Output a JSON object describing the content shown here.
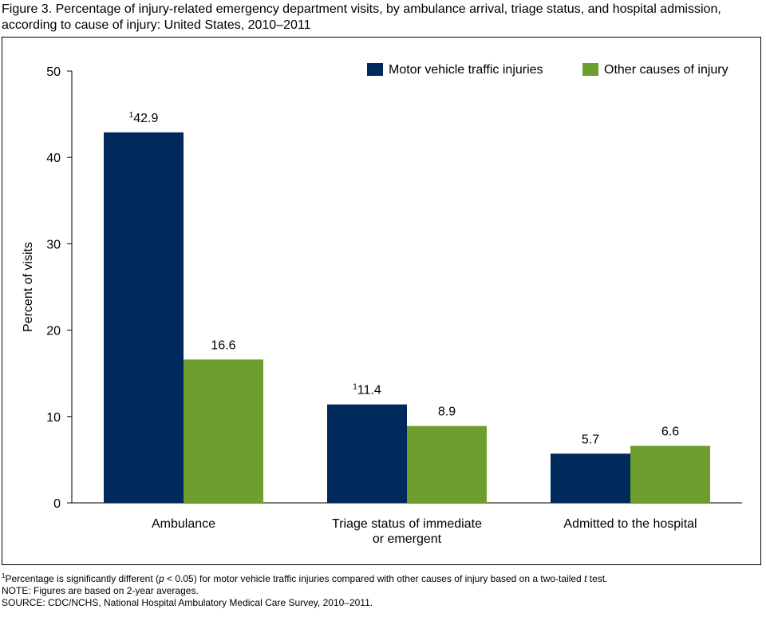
{
  "figure": {
    "title": "Figure 3. Percentage of injury-related emergency department visits, by ambulance arrival, triage status, and hospital admission, according to cause of injury: United States, 2010–2011"
  },
  "chart_data": {
    "type": "bar",
    "title": "Figure 3. Percentage of injury-related emergency department visits, by ambulance arrival, triage status, and hospital admission, according to cause of injury: United States, 2010–2011",
    "xlabel": "",
    "ylabel": "Percent of visits",
    "ylim": [
      0,
      50
    ],
    "yticks": [
      0,
      10,
      20,
      30,
      40,
      50
    ],
    "grid": false,
    "legend_position": "top-right",
    "categories": [
      [
        "Ambulance"
      ],
      [
        "Triage status of immediate",
        "or emergent"
      ],
      [
        "Admitted to the hospital"
      ]
    ],
    "series": [
      {
        "name": "Motor vehicle traffic injuries",
        "color": "#002a5c",
        "values": [
          42.9,
          11.4,
          5.7
        ],
        "labels": [
          "42.9",
          "11.4",
          "5.7"
        ],
        "significance_marker": [
          "1",
          "1",
          ""
        ]
      },
      {
        "name": "Other causes of injury",
        "color": "#6d9e2e",
        "values": [
          16.6,
          8.9,
          6.6
        ],
        "labels": [
          "16.6",
          "8.9",
          "6.6"
        ],
        "significance_marker": [
          "",
          "",
          ""
        ]
      }
    ]
  },
  "notes": {
    "footnote_marker": "1",
    "footnote_part1": "Percentage is significantly different (",
    "footnote_p": "p",
    "footnote_part2": " < 0.05) for motor vehicle traffic injuries compared with other causes of injury based on a two-tailed ",
    "footnote_t": "t",
    "footnote_part3": " test.",
    "note": "NOTE: Figures are based on 2-year averages.",
    "source": "SOURCE: CDC/NCHS, National Hospital Ambulatory Medical Care Survey, 2010–2011."
  }
}
